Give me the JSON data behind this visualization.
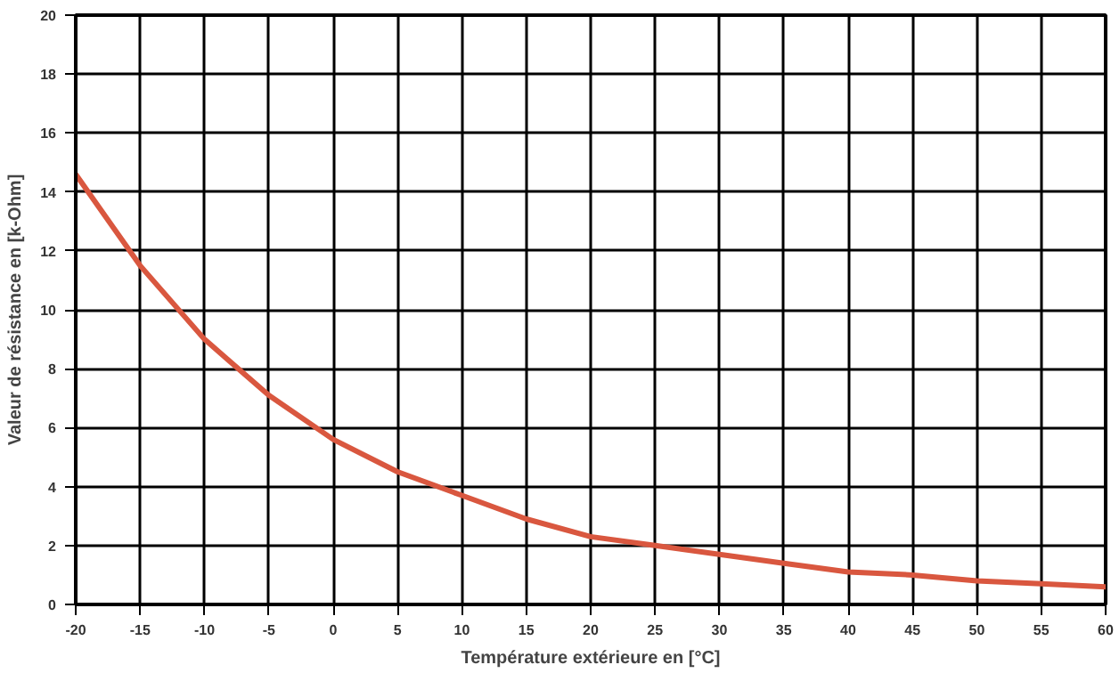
{
  "chart_data": {
    "type": "line",
    "xlabel": "Température extérieure en [°C]",
    "ylabel": "Valeur de résistance en [k-Ohm]",
    "x": [
      -20,
      -15,
      -10,
      -5,
      0,
      5,
      10,
      15,
      20,
      25,
      30,
      35,
      40,
      45,
      50,
      55,
      60
    ],
    "series": [
      {
        "color": "#d9573f",
        "values": [
          14.6,
          11.5,
          9.0,
          7.1,
          5.6,
          4.5,
          3.7,
          2.9,
          2.3,
          2.0,
          1.7,
          1.4,
          1.1,
          1.0,
          0.8,
          0.7,
          0.6
        ]
      }
    ],
    "xlim": [
      -20,
      60
    ],
    "ylim": [
      0,
      20
    ],
    "xticks": [
      -20,
      -15,
      -10,
      -5,
      0,
      5,
      10,
      15,
      20,
      25,
      30,
      35,
      40,
      45,
      50,
      55,
      60
    ],
    "yticks": [
      0,
      2,
      4,
      6,
      8,
      10,
      12,
      14,
      16,
      18,
      20
    ],
    "grid": true,
    "marker": "none",
    "line_style": "solid"
  }
}
